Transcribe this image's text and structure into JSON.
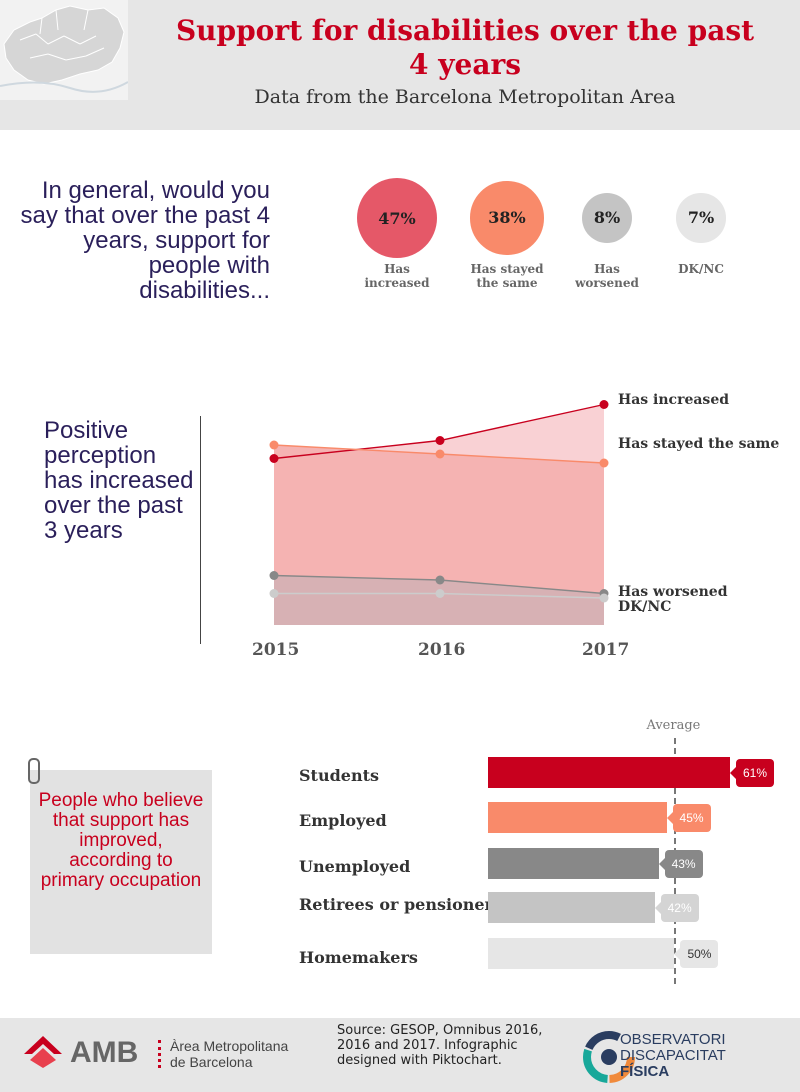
{
  "header": {
    "title": "Support for disabilities over the past 4 years",
    "subtitle": "Data from the Barcelona Metropolitan Area"
  },
  "question": {
    "text": "In general, would you say that over the past 4 years, support for people with disabilities..."
  },
  "colors": {
    "red": "#c8001e",
    "pink": "#e55868",
    "salmon": "#f98a6a",
    "dark_gray": "#888888",
    "mid_gray": "#c4c4c4",
    "light_gray": "#e6e6e6"
  },
  "chart_data": [
    {
      "type": "pie",
      "title": "",
      "categories": [
        "Has increased",
        "Has stayed the same",
        "Has worsened",
        "DK/NC"
      ],
      "values": [
        47,
        38,
        8,
        7
      ],
      "labels": [
        "47%",
        "38%",
        "8%",
        "7%"
      ],
      "category_labels": [
        [
          "Has",
          "increased"
        ],
        [
          "Has stayed",
          "the same"
        ],
        [
          "Has",
          "worsened"
        ],
        [
          "DK/NC"
        ]
      ],
      "colors": [
        "#e55868",
        "#f98a6a",
        "#c4c4c4",
        "#e6e6e6"
      ]
    },
    {
      "type": "area",
      "title": "Positive perception has increased over the past 3 years",
      "x": [
        "2015",
        "2016",
        "2017"
      ],
      "series": [
        {
          "name": "Has increased",
          "values": [
            37,
            41,
            49
          ],
          "color": "#c8001e"
        },
        {
          "name": "Has stayed the same",
          "values": [
            40,
            38,
            36
          ],
          "color": "#f98a6a"
        },
        {
          "name": "Has worsened",
          "values": [
            11,
            10,
            7
          ],
          "color": "#888888"
        },
        {
          "name": "DK/NC",
          "values": [
            7,
            7,
            6
          ],
          "color": "#cccccc"
        }
      ],
      "grid": false,
      "legend": "right"
    },
    {
      "type": "bar",
      "title": "People who believe that support has improved, according to primary occupation",
      "categories": [
        "Students",
        "Employed",
        "Unemployed",
        "Retirees or pensioners",
        "Homemakers"
      ],
      "values": [
        61,
        45,
        43,
        42,
        50
      ],
      "labels": [
        "61%",
        "45%",
        "43%",
        "42%",
        "50%"
      ],
      "colors": [
        "#c8001e",
        "#f98a6a",
        "#888888",
        "#c4c4c4",
        "#e6e6e6"
      ],
      "reference_line": {
        "label": "Average",
        "value": 47
      },
      "xlim": [
        0,
        61
      ]
    }
  ],
  "footer": {
    "amb": "AMB",
    "amb_name_1": "Àrea Metropolitana",
    "amb_name_2": "de Barcelona",
    "source": "Source:  GESOP, Omnibus 2016, 2016 and 2017. Infographic designed with Piktochart.",
    "obs_1": "OBSERVATORI",
    "obs_2": "DISCAPACITAT",
    "obs_3": "FÍSICA"
  }
}
